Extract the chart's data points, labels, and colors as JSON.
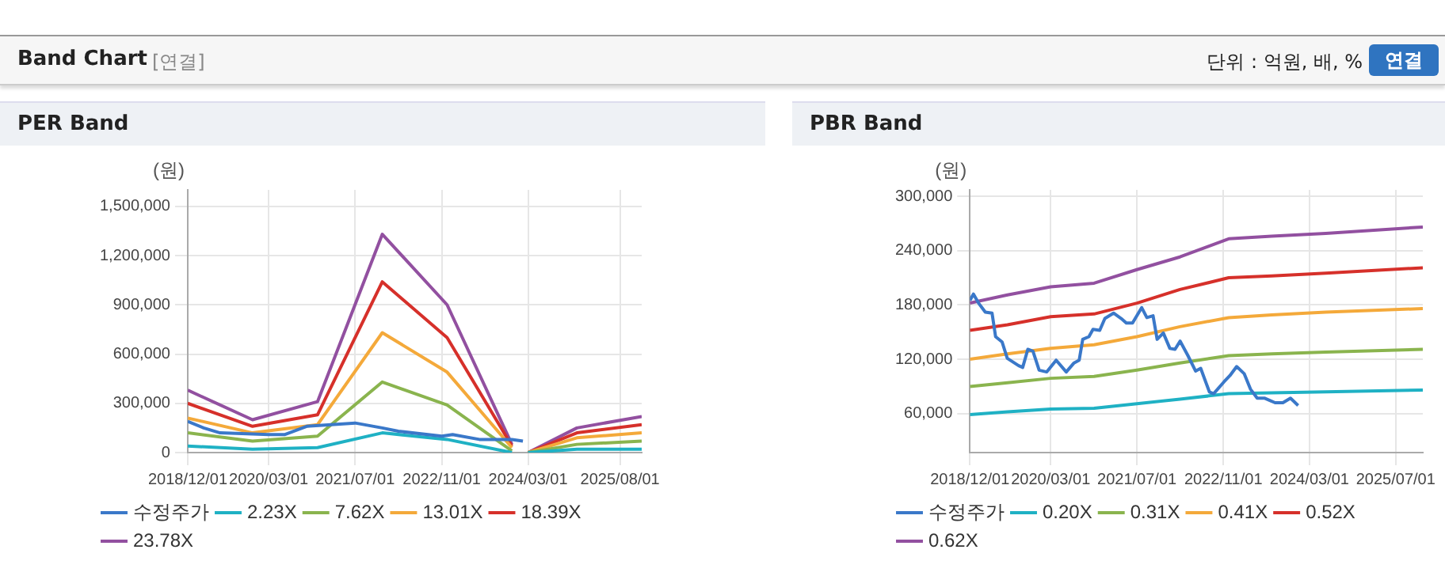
{
  "chart_data": [
    {
      "type": "other",
      "title": "Band Chart",
      "annotations": [
        "[연결]",
        "단위 : 억원, 배, %",
        "연결"
      ]
    },
    {
      "type": "line",
      "title": "PER Band",
      "ylabel": "(원)",
      "xlim": [
        "2018-12-01",
        "2025-12-01"
      ],
      "xticks": [
        {
          "value": "2018-12-01",
          "label": "2018/12/01"
        },
        {
          "value": "2020-03-01",
          "label": "2020/03/01"
        },
        {
          "value": "2021-07-01",
          "label": "2021/07/01"
        },
        {
          "value": "2022-11-01",
          "label": "2022/11/01"
        },
        {
          "value": "2024-03-01",
          "label": "2024/03/01"
        },
        {
          "value": "2025-08-01",
          "label": "2025/08/01"
        }
      ],
      "ylim": [
        0,
        1600000
      ],
      "yticks": [
        0,
        {
          "value": 300000,
          "label": "300,000"
        },
        {
          "value": 600000,
          "label": "600,000"
        },
        {
          "value": 900000,
          "label": "900,000"
        },
        {
          "value": 1200000,
          "label": "1,200,000"
        },
        {
          "value": 1500000,
          "label": "1,500,000"
        }
      ],
      "grid": true,
      "legend": "bottom",
      "marker": "none",
      "line_style": "solid",
      "series": [
        {
          "name": "수정주가",
          "color": "#3a78c9",
          "x": [
            "2018-12-01",
            "2019-03-01",
            "2019-06-01",
            "2020-03-01",
            "2020-06-01",
            "2020-10-01",
            "2021-07-01",
            "2021-12-01",
            "2022-03-01",
            "2022-11-01",
            "2023-01-01",
            "2023-06-01",
            "2023-12-01",
            "2024-02-01"
          ],
          "values": [
            190000,
            150000,
            120000,
            110000,
            110000,
            160000,
            180000,
            150000,
            130000,
            100000,
            110000,
            80000,
            80000,
            70000
          ]
        },
        {
          "name": "2.23X",
          "color": "#1fb1c4",
          "x": [
            "2018-12-01",
            "2019-12-01",
            "2020-12-01",
            "2021-12-01",
            "2022-12-01",
            "2023-12-01",
            "2024-01-01",
            "2024-03-01",
            "2024-12-01",
            "2025-12-01"
          ],
          "values": [
            40000,
            20000,
            30000,
            120000,
            80000,
            0,
            null,
            0,
            20000,
            20000
          ]
        },
        {
          "name": "7.62X",
          "color": "#8ab44e",
          "x": [
            "2018-12-01",
            "2019-12-01",
            "2020-12-01",
            "2021-12-01",
            "2022-12-01",
            "2023-12-01",
            "2024-01-01",
            "2024-03-01",
            "2024-12-01",
            "2025-12-01"
          ],
          "values": [
            120000,
            70000,
            100000,
            430000,
            290000,
            10000,
            null,
            0,
            50000,
            70000
          ]
        },
        {
          "name": "13.01X",
          "color": "#f4a93a",
          "x": [
            "2018-12-01",
            "2019-12-01",
            "2020-12-01",
            "2021-12-01",
            "2022-12-01",
            "2023-12-01",
            "2024-01-01",
            "2024-03-01",
            "2024-12-01",
            "2025-12-01"
          ],
          "values": [
            210000,
            120000,
            170000,
            730000,
            490000,
            30000,
            null,
            0,
            90000,
            120000
          ]
        },
        {
          "name": "18.39X",
          "color": "#d6302a",
          "x": [
            "2018-12-01",
            "2019-12-01",
            "2020-12-01",
            "2021-12-01",
            "2022-12-01",
            "2023-12-01",
            "2024-01-01",
            "2024-03-01",
            "2024-12-01",
            "2025-12-01"
          ],
          "values": [
            300000,
            160000,
            230000,
            1040000,
            700000,
            40000,
            null,
            0,
            120000,
            170000
          ]
        },
        {
          "name": "23.78X",
          "color": "#9250a0",
          "x": [
            "2018-12-01",
            "2019-12-01",
            "2020-12-01",
            "2021-12-01",
            "2022-12-01",
            "2023-12-01",
            "2024-01-01",
            "2024-03-01",
            "2024-12-01",
            "2025-12-01"
          ],
          "values": [
            380000,
            200000,
            310000,
            1330000,
            900000,
            50000,
            null,
            0,
            150000,
            220000
          ]
        }
      ]
    },
    {
      "type": "line",
      "title": "PBR Band",
      "ylabel": "(원)",
      "xlim": [
        "2018-12-01",
        "2025-12-01"
      ],
      "xticks": [
        {
          "value": "2018-12-01",
          "label": "2018/12/01"
        },
        {
          "value": "2020-03-01",
          "label": "2020/03/01"
        },
        {
          "value": "2021-07-01",
          "label": "2021/07/01"
        },
        {
          "value": "2022-11-01",
          "label": "2022/11/01"
        },
        {
          "value": "2024-03-01",
          "label": "2024/03/01"
        },
        {
          "value": "2025-07-01",
          "label": "2025/07/01"
        }
      ],
      "ylim": [
        17000,
        307000
      ],
      "yticks": [
        {
          "value": 60000,
          "label": "60,000"
        },
        {
          "value": 120000,
          "label": "120,000"
        },
        {
          "value": 180000,
          "label": "180,000"
        },
        {
          "value": 240000,
          "label": "240,000"
        },
        {
          "value": 300000,
          "label": "300,000"
        }
      ],
      "grid": true,
      "legend": "bottom",
      "marker": "none",
      "line_style": "solid",
      "series": [
        {
          "name": "수정주가",
          "color": "#3a78c9",
          "x": [
            "2018-12-01",
            "2018-12-21",
            "2019-01-19",
            "2019-02-26",
            "2019-04-05",
            "2019-04-25",
            "2019-06-01",
            "2019-06-30",
            "2019-09-02",
            "2019-09-25",
            "2019-10-24",
            "2019-11-22",
            "2019-12-27",
            "2020-02-08",
            "2020-04-01",
            "2020-05-28",
            "2020-07-11",
            "2020-08-09",
            "2020-08-29",
            "2020-10-03",
            "2020-10-26",
            "2020-12-03",
            "2021-01-01",
            "2021-02-19",
            "2021-04-03",
            "2021-05-02",
            "2021-06-06",
            "2021-07-28",
            "2021-08-26",
            "2021-09-30",
            "2021-10-23",
            "2021-11-27",
            "2022-01-03",
            "2022-02-01",
            "2022-03-02",
            "2022-04-15",
            "2022-05-28",
            "2022-06-26",
            "2022-08-14",
            "2022-09-07",
            "2022-11-04",
            "2022-12-08",
            "2023-01-15",
            "2023-02-27",
            "2023-04-03",
            "2023-05-11",
            "2023-06-23",
            "2023-08-20",
            "2023-10-03",
            "2023-11-15",
            "2023-12-28"
          ],
          "values": [
            185000,
            192000,
            182000,
            172000,
            171000,
            145000,
            139000,
            121000,
            113000,
            111000,
            131000,
            129000,
            108000,
            106000,
            119000,
            106000,
            116000,
            119000,
            142000,
            145000,
            153000,
            152000,
            165000,
            171000,
            165000,
            160000,
            160000,
            177000,
            166000,
            168000,
            142000,
            149000,
            132000,
            131000,
            140000,
            124000,
            107000,
            110000,
            84000,
            82000,
            95000,
            102000,
            112000,
            104000,
            87000,
            77000,
            77000,
            72000,
            72000,
            77000,
            69000
          ]
        },
        {
          "name": "0.20X",
          "color": "#1fb1c4",
          "x": [
            "2018-12-01",
            "2019-07-01",
            "2020-03-01",
            "2020-11-01",
            "2021-07-01",
            "2022-03-01",
            "2022-12-01",
            "2023-08-01",
            "2024-06-01",
            "2025-12-01"
          ],
          "values": [
            59000,
            62000,
            65000,
            66000,
            71000,
            76000,
            82000,
            83000,
            84000,
            86000
          ]
        },
        {
          "name": "0.31X",
          "color": "#8ab44e",
          "x": [
            "2018-12-01",
            "2019-07-01",
            "2020-03-01",
            "2020-11-01",
            "2021-07-01",
            "2022-03-01",
            "2022-12-01",
            "2023-08-01",
            "2024-06-01",
            "2025-12-01"
          ],
          "values": [
            90000,
            94000,
            99000,
            101000,
            108000,
            116000,
            124000,
            126000,
            128000,
            131000
          ]
        },
        {
          "name": "0.41X",
          "color": "#f4a93a",
          "x": [
            "2018-12-01",
            "2019-07-01",
            "2020-03-01",
            "2020-11-01",
            "2021-07-01",
            "2022-03-01",
            "2022-12-01",
            "2023-08-01",
            "2024-06-01",
            "2025-12-01"
          ],
          "values": [
            120000,
            126000,
            132000,
            136000,
            145000,
            156000,
            166000,
            169000,
            172000,
            176000
          ]
        },
        {
          "name": "0.52X",
          "color": "#d6302a",
          "x": [
            "2018-12-01",
            "2019-07-01",
            "2020-03-01",
            "2020-11-01",
            "2021-07-01",
            "2022-03-01",
            "2022-12-01",
            "2023-08-01",
            "2024-06-01",
            "2025-12-01"
          ],
          "values": [
            152000,
            158000,
            167000,
            170000,
            182000,
            197000,
            210000,
            212000,
            215000,
            221000
          ]
        },
        {
          "name": "0.62X",
          "color": "#9250a0",
          "x": [
            "2018-12-01",
            "2019-07-01",
            "2020-03-01",
            "2020-11-01",
            "2021-07-01",
            "2022-03-01",
            "2022-12-01",
            "2023-08-01",
            "2024-06-01",
            "2025-12-01"
          ],
          "values": [
            182000,
            191000,
            200000,
            204000,
            219000,
            233000,
            253000,
            256000,
            259000,
            266000
          ]
        }
      ]
    }
  ]
}
